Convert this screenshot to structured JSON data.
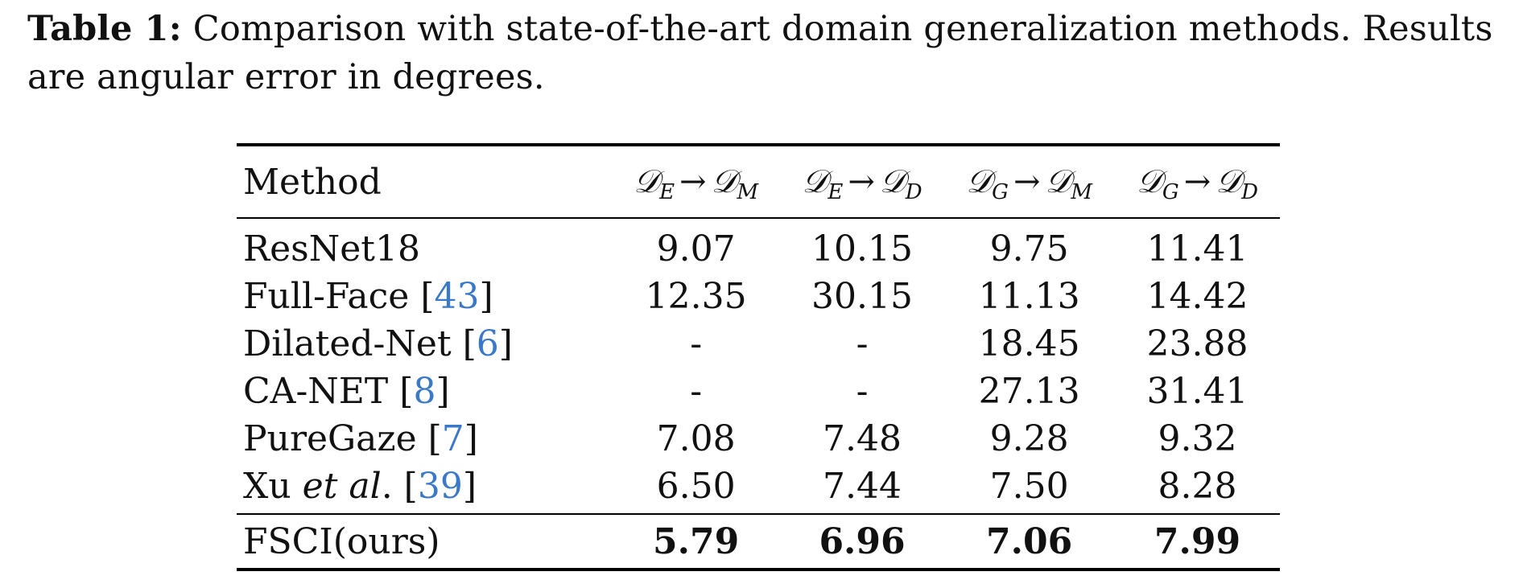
{
  "caption": {
    "label": "Table 1:",
    "text": "Comparison with state-of-the-art domain generalization methods. Results are angular error in degrees."
  },
  "table": {
    "columns": [
      {
        "label": "Method"
      },
      {
        "src": "E",
        "tgt": "M"
      },
      {
        "src": "E",
        "tgt": "D"
      },
      {
        "src": "G",
        "tgt": "M"
      },
      {
        "src": "G",
        "tgt": "D"
      }
    ],
    "domain_symbol": "𝒟",
    "arrow": "→",
    "rows": [
      {
        "name": "ResNet18",
        "name_italic": "",
        "name_suffix": "",
        "cite": "",
        "values": [
          "9.07",
          "10.15",
          "9.75",
          "11.41"
        ]
      },
      {
        "name": "Full-Face",
        "name_italic": "",
        "name_suffix": "",
        "cite": "43",
        "values": [
          "12.35",
          "30.15",
          "11.13",
          "14.42"
        ]
      },
      {
        "name": "Dilated-Net",
        "name_italic": "",
        "name_suffix": "",
        "cite": "6",
        "values": [
          "-",
          "-",
          "18.45",
          "23.88"
        ]
      },
      {
        "name": "CA-NET",
        "name_italic": "",
        "name_suffix": "",
        "cite": "8",
        "values": [
          "-",
          "-",
          "27.13",
          "31.41"
        ]
      },
      {
        "name": "PureGaze",
        "name_italic": "",
        "name_suffix": "",
        "cite": "7",
        "values": [
          "7.08",
          "7.48",
          "9.28",
          "9.32"
        ]
      },
      {
        "name": "Xu",
        "name_italic": "et al",
        "name_suffix": ".",
        "cite": "39",
        "values": [
          "6.50",
          "7.44",
          "7.50",
          "8.28"
        ]
      }
    ],
    "ours": {
      "name": "FSCI(ours)",
      "values": [
        "5.79",
        "6.96",
        "7.06",
        "7.99"
      ]
    }
  }
}
